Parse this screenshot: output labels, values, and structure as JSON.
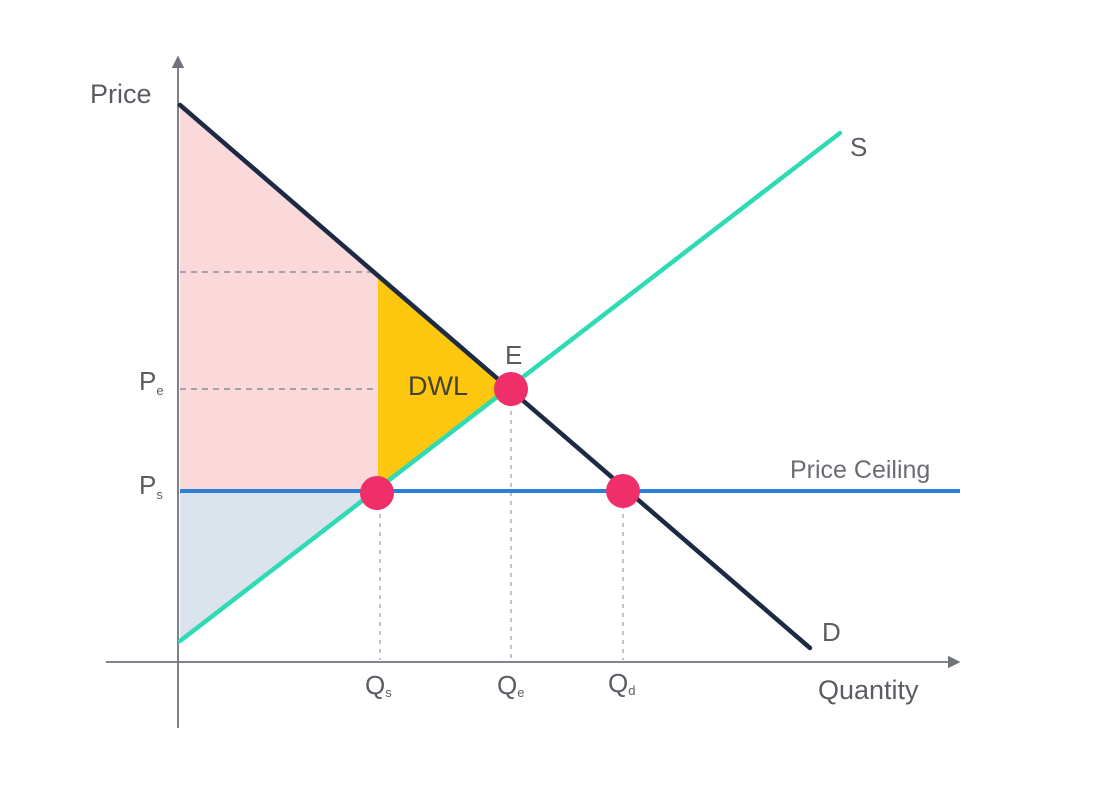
{
  "diagram": {
    "axes": {
      "y_label": "Price",
      "x_label": "Quantity"
    },
    "curves": {
      "supply": {
        "label": "S",
        "color": "#2edbb5"
      },
      "demand": {
        "label": "D",
        "color": "#1c2a45"
      },
      "price_ceiling": {
        "label": "Price Ceiling",
        "color": "#2b7fd6"
      }
    },
    "price_ticks": [
      {
        "main": "P",
        "sub": "e"
      },
      {
        "main": "P",
        "sub": "s"
      }
    ],
    "quantity_ticks": [
      {
        "main": "Q",
        "sub": "s"
      },
      {
        "main": "Q",
        "sub": "e"
      },
      {
        "main": "Q",
        "sub": "d"
      }
    ],
    "equilibrium_label": "E",
    "deadweight_loss_label": "DWL",
    "areas": {
      "consumer_surplus_color": "#fbd9da",
      "producer_surplus_color": "#dbe3ec",
      "deadweight_loss_color": "#fcc70e"
    },
    "marker_color": "#ef2f6a"
  }
}
